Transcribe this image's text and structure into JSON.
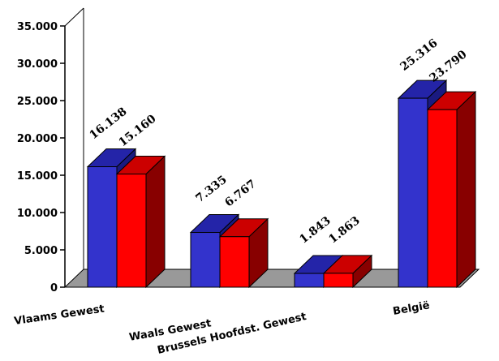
{
  "chart_data": {
    "type": "bar",
    "categories": [
      "Vlaams Gewest",
      "Waals Gewest",
      "Brussels Hoofdst. Gewest",
      "België"
    ],
    "series": [
      {
        "values": [
          16138,
          7335,
          1843,
          25316
        ],
        "labels": [
          "16.138",
          "7.335",
          "1.843",
          "25.316"
        ],
        "color": "#3333cc"
      },
      {
        "values": [
          15160,
          6767,
          1863,
          23790
        ],
        "labels": [
          "15.160",
          "6.767",
          "1.863",
          "23.790"
        ],
        "color": "#ff0000"
      }
    ],
    "yticks": [
      "0",
      "5.000",
      "10.000",
      "15.000",
      "20.000",
      "25.000",
      "30.000",
      "35.000"
    ],
    "ylim": [
      0,
      35000
    ],
    "title": "",
    "xlabel": "",
    "ylabel": "",
    "legend": "none",
    "grid": false,
    "floor_color": "#999999"
  }
}
